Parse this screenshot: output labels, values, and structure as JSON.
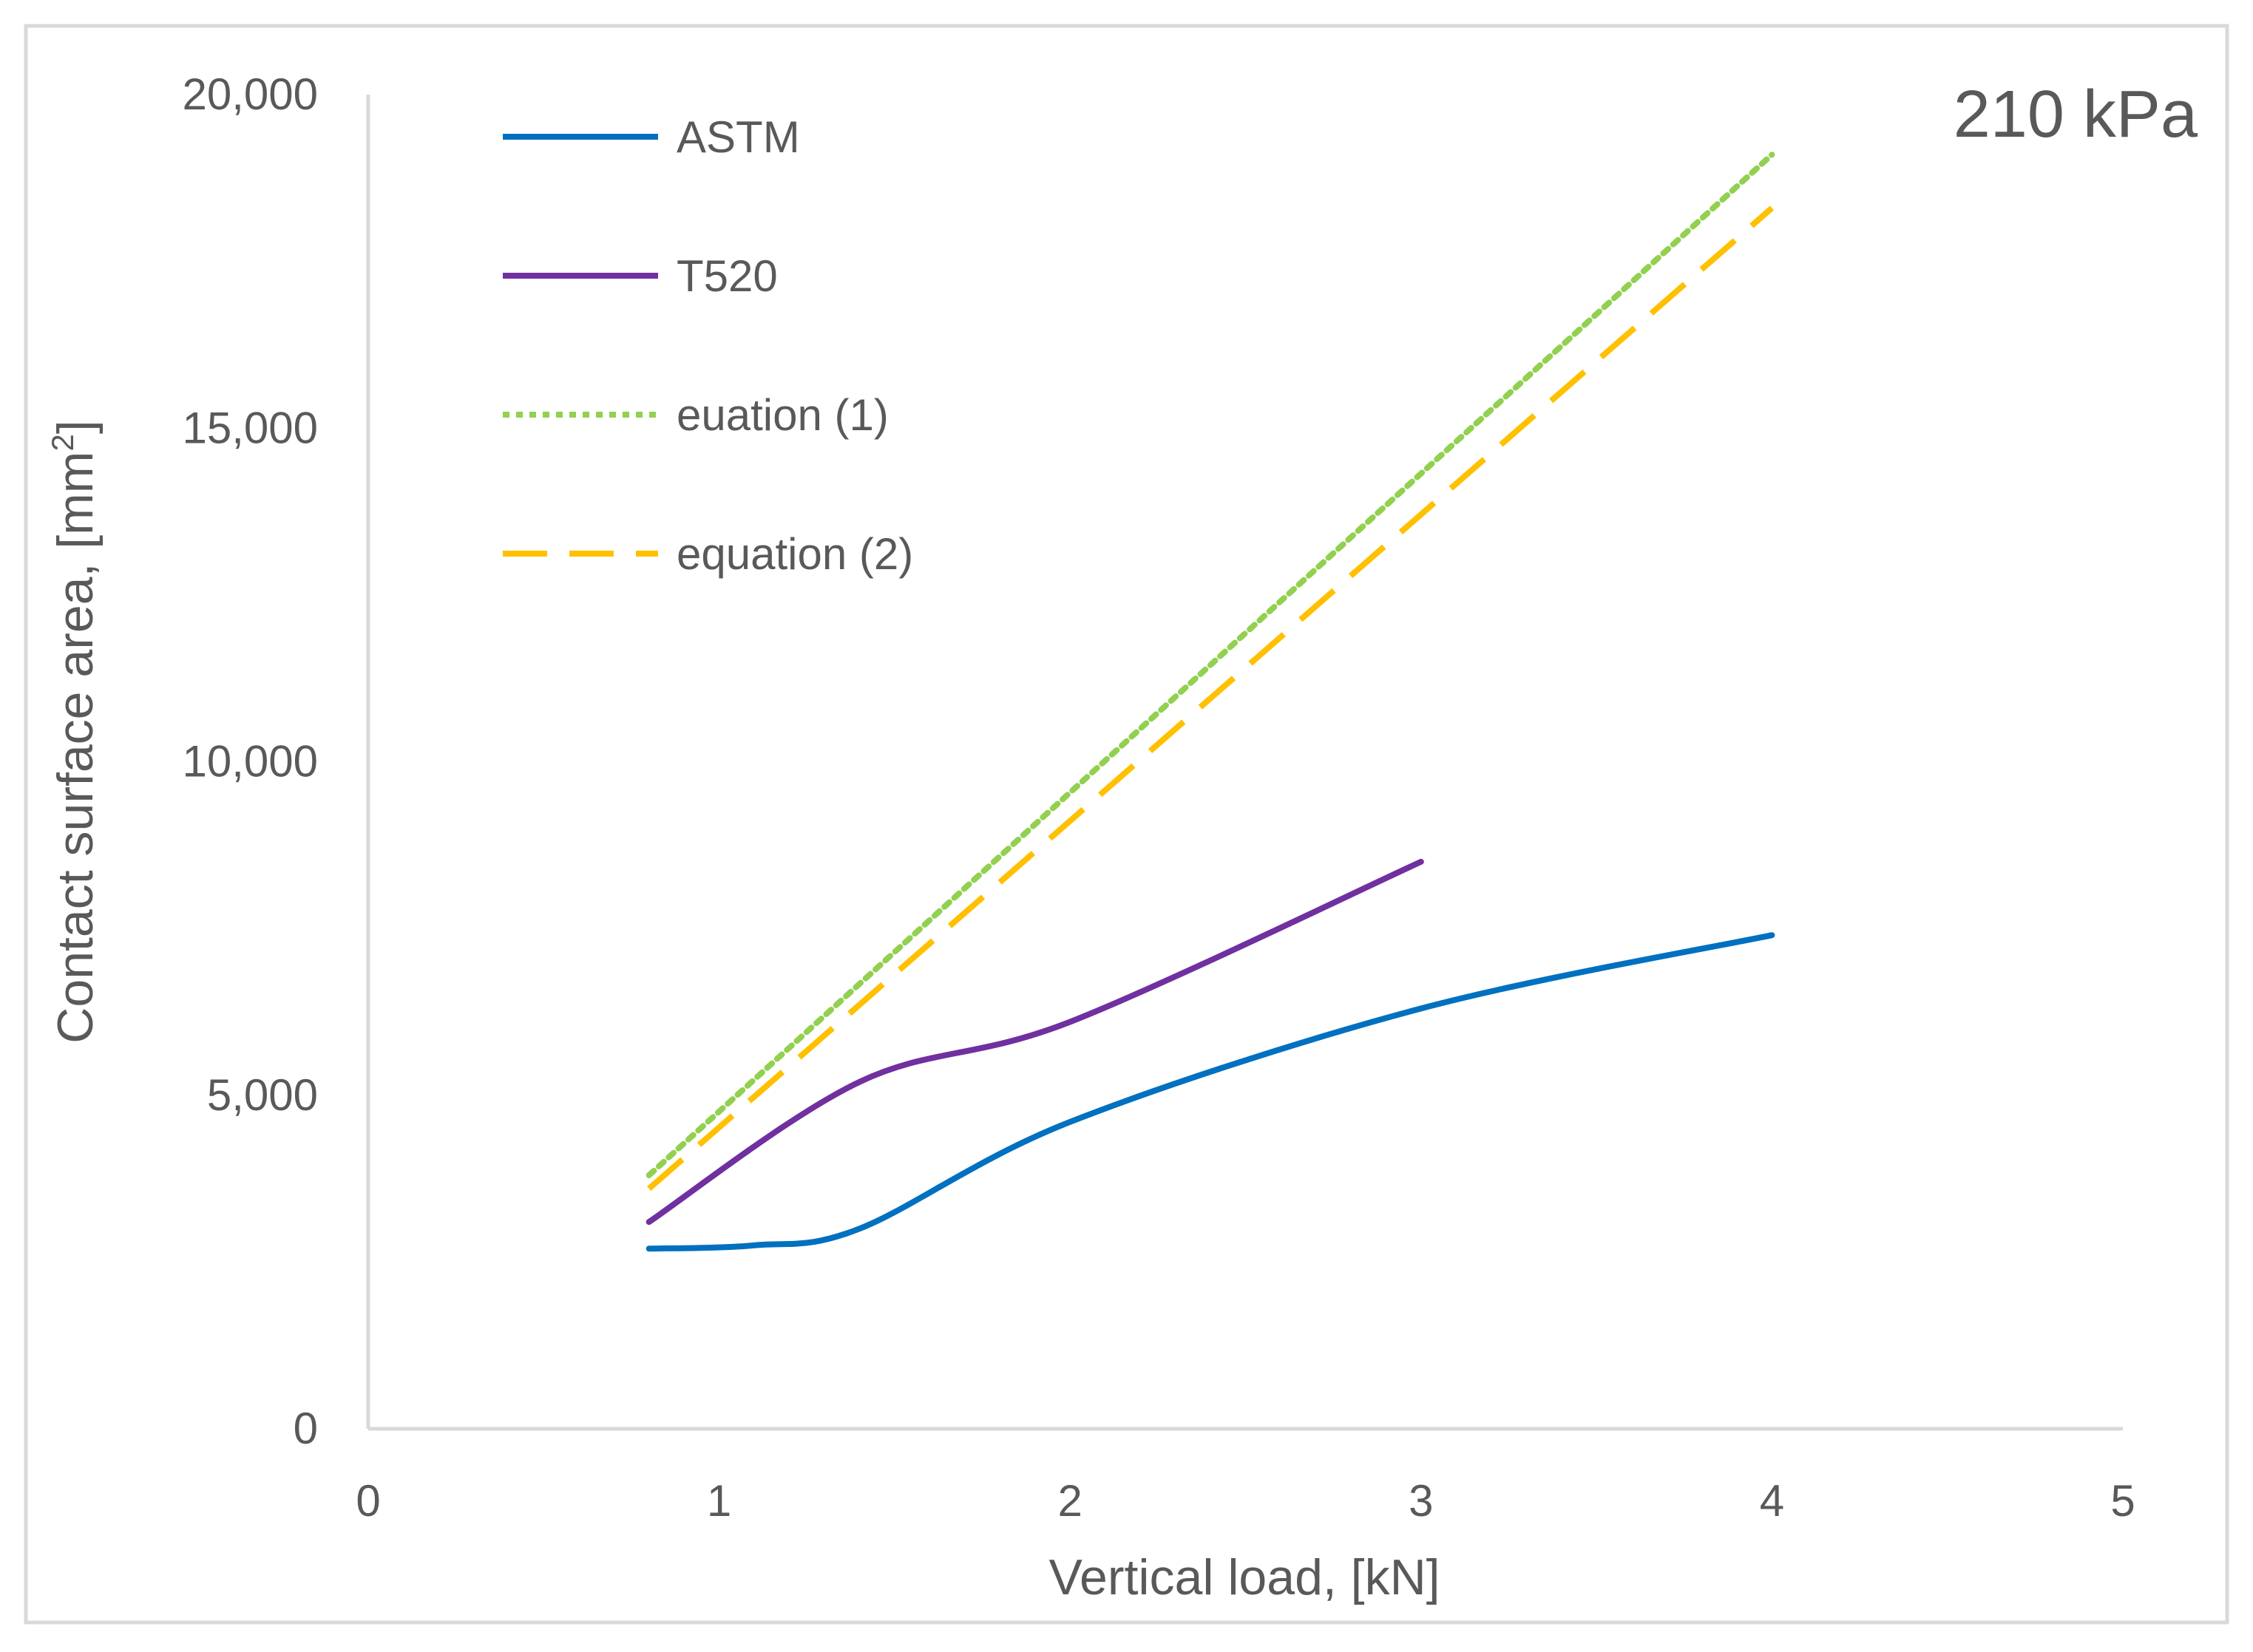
{
  "chart_data": {
    "type": "line",
    "annotation": "210 kPa",
    "xlabel": "Vertical load, [kN]",
    "ylabel": "Contact surface area, [mm",
    "ylabel_superscript": "2",
    "ylabel_suffix": "]",
    "xlim": [
      0,
      5
    ],
    "ylim": [
      0,
      20000
    ],
    "x_ticks": [
      0,
      1,
      2,
      3,
      4,
      5
    ],
    "x_tick_labels": [
      "0",
      "1",
      "2",
      "3",
      "4",
      "5"
    ],
    "y_ticks": [
      0,
      5000,
      10000,
      15000,
      20000
    ],
    "y_tick_labels": [
      "0",
      "5,000",
      "10,000",
      "15,000",
      "20,000"
    ],
    "grid": false,
    "legend_position": "top-left",
    "series": [
      {
        "name": "ASTM",
        "color": "#0070c0",
        "style": "solid",
        "x": [
          0.8,
          1.1,
          1.4,
          2.0,
          3.0,
          4.0
        ],
        "y": [
          2700,
          2750,
          3000,
          4600,
          6300,
          7400
        ]
      },
      {
        "name": "T520",
        "color": "#7030a0",
        "style": "solid",
        "x": [
          0.8,
          1.4,
          2.0,
          3.0
        ],
        "y": [
          3100,
          5200,
          6100,
          8500
        ]
      },
      {
        "name": "euation (1)",
        "color": "#92d050",
        "style": "dotted",
        "x": [
          0.8,
          4.0
        ],
        "y": [
          3800,
          19100
        ]
      },
      {
        "name": "equation (2)",
        "color": "#ffc000",
        "style": "dashed",
        "x": [
          0.8,
          4.0
        ],
        "y": [
          3600,
          18300
        ]
      }
    ]
  }
}
